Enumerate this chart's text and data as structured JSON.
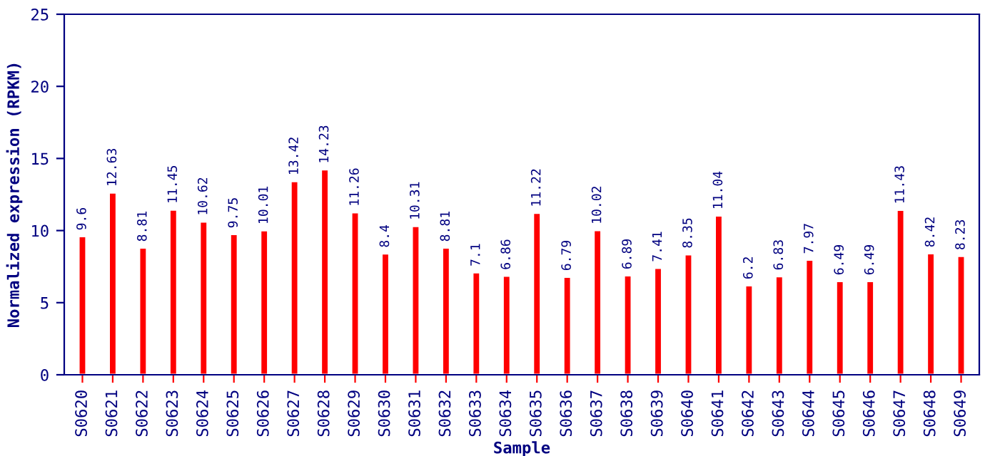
{
  "chart_data": {
    "type": "bar",
    "xlabel": "Sample",
    "ylabel": "Normalized expression (RPKM)",
    "categories": [
      "S0620",
      "S0621",
      "S0622",
      "S0623",
      "S0624",
      "S0625",
      "S0626",
      "S0627",
      "S0628",
      "S0629",
      "S0630",
      "S0631",
      "S0632",
      "S0633",
      "S0634",
      "S0635",
      "S0636",
      "S0637",
      "S0638",
      "S0639",
      "S0640",
      "S0641",
      "S0642",
      "S0643",
      "S0644",
      "S0645",
      "S0646",
      "S0647",
      "S0648",
      "S0649"
    ],
    "values": [
      9.6,
      12.63,
      8.81,
      11.45,
      10.62,
      9.75,
      10.01,
      13.42,
      14.23,
      11.26,
      8.4,
      10.31,
      8.81,
      7.1,
      6.86,
      11.22,
      6.79,
      10.02,
      6.89,
      7.41,
      8.35,
      11.04,
      6.2,
      6.83,
      7.97,
      6.49,
      6.49,
      11.43,
      8.42,
      8.23
    ],
    "color": "#ff0000",
    "ylim": [
      0,
      25
    ],
    "yticks": [
      0,
      5,
      10,
      15,
      20,
      25
    ],
    "data_labels": true,
    "grid": false,
    "legend": false
  }
}
